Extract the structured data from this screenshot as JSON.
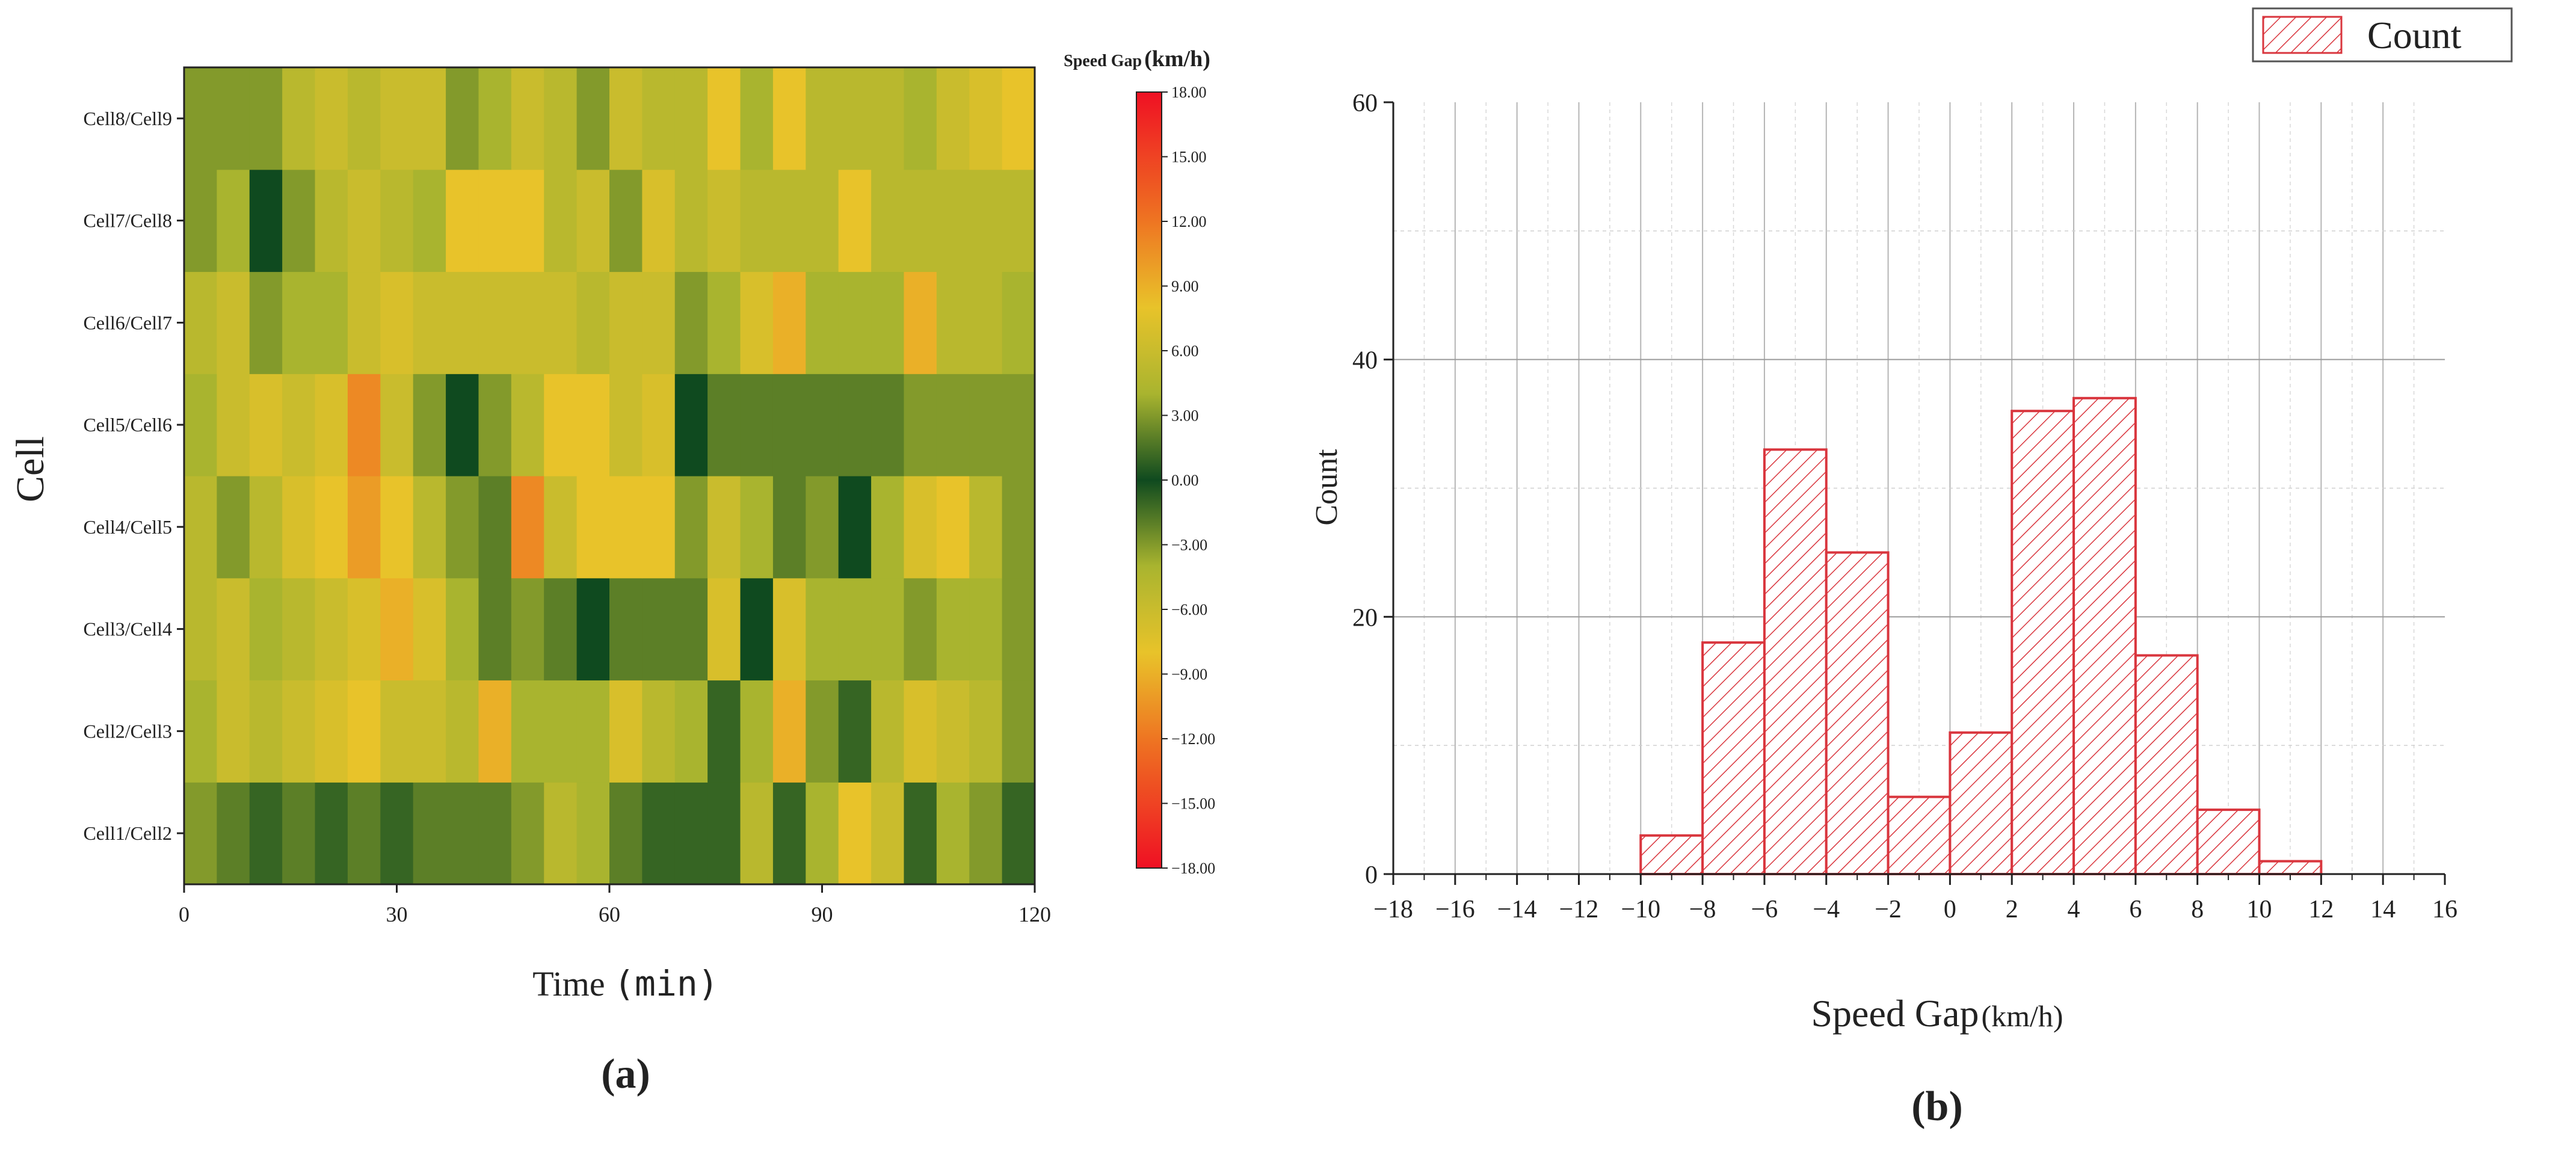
{
  "chart_data": [
    {
      "type": "heatmap",
      "panel_label": "(a)",
      "title": "",
      "xlabel": "Time",
      "xlabel_unit": "(min)",
      "ylabel": "Cell",
      "x_ticks": [
        "0",
        "30",
        "60",
        "90",
        "120"
      ],
      "xlim": [
        0,
        120
      ],
      "time_step_min": 3.75,
      "rows": [
        "Cell1/Cell2",
        "Cell2/Cell3",
        "Cell3/Cell4",
        "Cell4/Cell5",
        "Cell5/Cell6",
        "Cell6/Cell7",
        "Cell7/Cell8",
        "Cell8/Cell9"
      ],
      "values": [
        [
          -3,
          -2,
          -1,
          -2,
          -1,
          -2,
          -1,
          2,
          2,
          2,
          3,
          5,
          4,
          2,
          -1,
          -1,
          -1,
          5,
          -1,
          4,
          8,
          6,
          -1,
          4,
          3,
          -1
        ],
        [
          4,
          6,
          5,
          6,
          7,
          8,
          6,
          6,
          5,
          9,
          4,
          4,
          4,
          7,
          5,
          4,
          -1,
          4,
          9,
          3,
          1,
          5,
          7,
          6,
          5,
          3
        ],
        [
          5,
          6,
          4,
          5,
          6,
          7,
          9,
          7,
          4,
          2,
          3,
          2,
          0,
          2,
          2,
          2,
          7,
          0,
          7,
          4,
          4,
          4,
          3,
          4,
          4,
          3
        ],
        [
          5,
          3,
          5,
          7,
          8,
          10,
          8,
          5,
          3,
          2,
          11,
          6,
          8,
          8,
          8,
          3,
          6,
          4,
          2,
          3,
          0,
          4,
          7,
          8,
          5,
          3
        ],
        [
          4,
          6,
          7,
          6,
          7,
          11,
          6,
          3,
          0,
          3,
          5,
          8,
          8,
          6,
          7,
          0,
          2,
          2,
          2,
          2,
          2,
          2,
          3,
          3,
          3,
          3
        ],
        [
          5,
          6,
          3,
          4,
          4,
          6,
          7,
          6,
          6,
          6,
          6,
          6,
          5,
          6,
          6,
          3,
          4,
          7,
          9,
          4,
          4,
          4,
          9,
          5,
          5,
          4
        ],
        [
          3,
          4,
          0,
          3,
          5,
          6,
          5,
          4,
          8,
          8,
          8,
          5,
          6,
          3,
          7,
          5,
          6,
          5,
          5,
          5,
          8,
          5,
          5,
          5,
          5,
          5
        ],
        [
          3,
          3,
          3,
          5,
          6,
          5,
          6,
          6,
          3,
          4,
          6,
          5,
          3,
          6,
          5,
          5,
          8,
          4,
          8,
          5,
          5,
          5,
          4,
          6,
          7,
          8
        ]
      ],
      "colorbar": {
        "label": "Speed Gap",
        "unit": "(km/h)",
        "range": [
          -18,
          18
        ],
        "tick_labels": [
          "18.00",
          "15.00",
          "12.00",
          "9.00",
          "6.00",
          "3.00",
          "0.00",
          "−3.00",
          "−6.00",
          "−9.00",
          "−12.00",
          "−15.00",
          "−18.00"
        ],
        "stops": [
          {
            "value": 18,
            "color": "#ef1023"
          },
          {
            "value": 12,
            "color": "#ee7522"
          },
          {
            "value": 8,
            "color": "#e8c32a"
          },
          {
            "value": 4,
            "color": "#a9b42f"
          },
          {
            "value": 0,
            "color": "#0f4a1f"
          },
          {
            "value": -4,
            "color": "#a9b42f"
          },
          {
            "value": -8,
            "color": "#e8c32a"
          },
          {
            "value": -12,
            "color": "#ee7522"
          },
          {
            "value": -18,
            "color": "#ef1023"
          }
        ]
      }
    },
    {
      "type": "bar",
      "subtype": "histogram",
      "panel_label": "(b)",
      "title": "",
      "xlabel": "Speed Gap",
      "xlabel_unit": "(km/h)",
      "ylabel": "Count",
      "xlim": [
        -18,
        16
      ],
      "ylim": [
        0,
        60
      ],
      "x_ticks": [
        "−18",
        "−16",
        "−14",
        "−12",
        "−10",
        "−8",
        "−6",
        "−4",
        "−2",
        "0",
        "2",
        "4",
        "6",
        "8",
        "10",
        "12",
        "14",
        "16"
      ],
      "y_ticks": [
        "0",
        "20",
        "40",
        "60"
      ],
      "legend": {
        "label": "Count",
        "position": "top-right"
      },
      "bar_color": "#d9363e",
      "series": [
        {
          "name": "Count",
          "bins": [
            {
              "start": -10,
              "end": -8,
              "count": 3
            },
            {
              "start": -8,
              "end": -6,
              "count": 18
            },
            {
              "start": -6,
              "end": -4,
              "count": 33
            },
            {
              "start": -4,
              "end": -2,
              "count": 25
            },
            {
              "start": -2,
              "end": 0,
              "count": 6
            },
            {
              "start": 0,
              "end": 2,
              "count": 11
            },
            {
              "start": 2,
              "end": 4,
              "count": 36
            },
            {
              "start": 4,
              "end": 6,
              "count": 37
            },
            {
              "start": 6,
              "end": 8,
              "count": 17
            },
            {
              "start": 8,
              "end": 10,
              "count": 5
            },
            {
              "start": 10,
              "end": 12,
              "count": 1
            }
          ]
        }
      ]
    }
  ]
}
